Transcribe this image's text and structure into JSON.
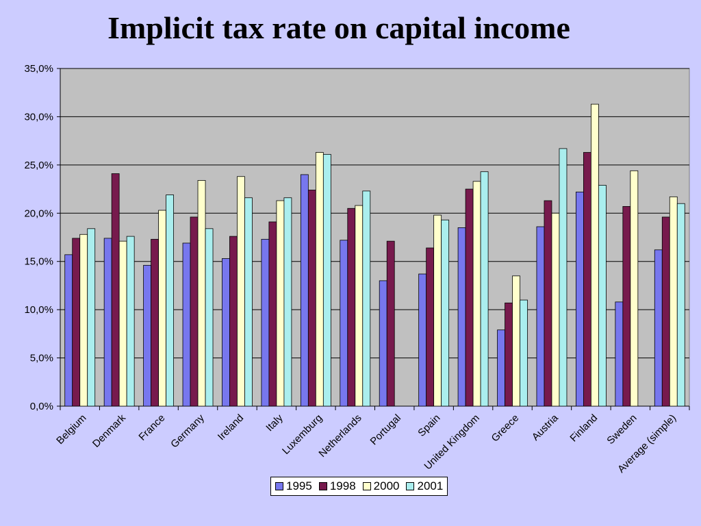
{
  "chart_data": {
    "type": "bar",
    "title": "Implicit tax rate on capital income",
    "xlabel": "",
    "ylabel": "",
    "ylim": [
      0,
      35
    ],
    "yticks": [
      "0,0%",
      "5,0%",
      "10,0%",
      "15,0%",
      "20,0%",
      "25,0%",
      "30,0%",
      "35,0%"
    ],
    "grid": true,
    "legend_position": "bottom",
    "categories": [
      "Belgium",
      "Denmark",
      "France",
      "Germany",
      "Ireland",
      "Italy",
      "Luxemburg",
      "Netherlands",
      "Portugal",
      "Spain",
      "United Kingdom",
      "Greece",
      "Austria",
      "Finland",
      "Sweden",
      "Average (simple)"
    ],
    "series": [
      {
        "name": "1995",
        "color": "#7777ee",
        "values": [
          15.7,
          17.4,
          14.6,
          16.9,
          15.3,
          17.3,
          24.0,
          17.2,
          13.0,
          13.7,
          18.5,
          7.9,
          18.6,
          22.2,
          10.8,
          16.2
        ]
      },
      {
        "name": "1998",
        "color": "#771a4d",
        "values": [
          17.4,
          24.1,
          17.3,
          19.6,
          17.6,
          19.1,
          22.4,
          20.5,
          17.1,
          16.4,
          22.5,
          10.7,
          21.3,
          26.3,
          20.7,
          19.6
        ]
      },
      {
        "name": "2000",
        "color": "#ffffcc",
        "values": [
          17.8,
          17.1,
          20.3,
          23.4,
          23.8,
          21.3,
          26.3,
          20.8,
          null,
          19.8,
          23.3,
          13.5,
          20.0,
          31.3,
          24.4,
          21.7
        ]
      },
      {
        "name": "2001",
        "color": "#aaeeee",
        "values": [
          18.4,
          17.6,
          21.9,
          18.4,
          21.6,
          21.6,
          26.1,
          22.3,
          null,
          19.3,
          24.3,
          11.0,
          26.7,
          22.9,
          null,
          21.0
        ]
      }
    ]
  }
}
